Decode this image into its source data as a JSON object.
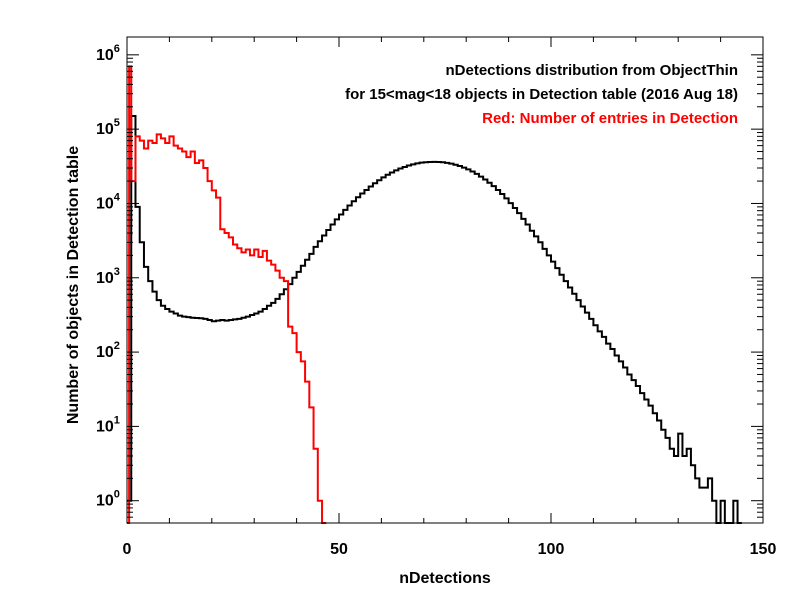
{
  "chart_data": {
    "type": "line",
    "step": true,
    "xlabel": "nDetections",
    "ylabel": "Number of objects in Detection table",
    "xlim": [
      0,
      150
    ],
    "ylim_log10": [
      -0.3,
      6.24
    ],
    "yscale": "log",
    "x_ticks": [
      {
        "value": 0,
        "label": "0"
      },
      {
        "value": 50,
        "label": "50"
      },
      {
        "value": 100,
        "label": "100"
      },
      {
        "value": 150,
        "label": "150"
      }
    ],
    "y_ticks": [
      {
        "exp": 0,
        "base": "10",
        "sup": "0"
      },
      {
        "exp": 1,
        "base": "10",
        "sup": "1"
      },
      {
        "exp": 2,
        "base": "10",
        "sup": "2"
      },
      {
        "exp": 3,
        "base": "10",
        "sup": "3"
      },
      {
        "exp": 4,
        "base": "10",
        "sup": "4"
      },
      {
        "exp": 5,
        "base": "10",
        "sup": "5"
      },
      {
        "exp": 6,
        "base": "10",
        "sup": "6"
      }
    ],
    "annotations": [
      {
        "text": "nDetections distribution from ObjectThin",
        "color": "#000000"
      },
      {
        "text": "for 15<mag<18 objects in Detection table (2016 Aug 18)",
        "color": "#000000"
      },
      {
        "text": "Red: Number of entries in Detection",
        "color": "#ff0000"
      }
    ],
    "series": [
      {
        "color": "#000000",
        "points": [
          [
            0,
            1
          ],
          [
            1,
            150000
          ],
          [
            2,
            9000
          ],
          [
            3,
            3000
          ],
          [
            4,
            1400
          ],
          [
            5,
            900
          ],
          [
            6,
            650
          ],
          [
            7,
            500
          ],
          [
            8,
            420
          ],
          [
            9,
            380
          ],
          [
            10,
            350
          ],
          [
            11,
            330
          ],
          [
            12,
            310
          ],
          [
            13,
            300
          ],
          [
            14,
            295
          ],
          [
            15,
            290
          ],
          [
            16,
            288
          ],
          [
            17,
            285
          ],
          [
            18,
            280
          ],
          [
            19,
            270
          ],
          [
            20,
            260
          ],
          [
            21,
            265
          ],
          [
            22,
            270
          ],
          [
            23,
            265
          ],
          [
            24,
            270
          ],
          [
            25,
            275
          ],
          [
            26,
            280
          ],
          [
            27,
            290
          ],
          [
            28,
            300
          ],
          [
            29,
            315
          ],
          [
            30,
            330
          ],
          [
            31,
            350
          ],
          [
            32,
            380
          ],
          [
            33,
            420
          ],
          [
            34,
            460
          ],
          [
            35,
            520
          ],
          [
            36,
            600
          ],
          [
            37,
            700
          ],
          [
            38,
            820
          ],
          [
            39,
            1000
          ],
          [
            40,
            1200
          ],
          [
            41,
            1450
          ],
          [
            42,
            1750
          ],
          [
            43,
            2100
          ],
          [
            44,
            2600
          ],
          [
            45,
            3100
          ],
          [
            46,
            3700
          ],
          [
            47,
            4400
          ],
          [
            48,
            5200
          ],
          [
            49,
            6100
          ],
          [
            50,
            7100
          ],
          [
            51,
            8200
          ],
          [
            52,
            9400
          ],
          [
            53,
            10700
          ],
          [
            54,
            12100
          ],
          [
            55,
            13600
          ],
          [
            56,
            15200
          ],
          [
            57,
            16900
          ],
          [
            58,
            18700
          ],
          [
            59,
            20500
          ],
          [
            60,
            22400
          ],
          [
            61,
            24300
          ],
          [
            62,
            26100
          ],
          [
            63,
            27900
          ],
          [
            64,
            29500
          ],
          [
            65,
            31000
          ],
          [
            66,
            32400
          ],
          [
            67,
            33600
          ],
          [
            68,
            34600
          ],
          [
            69,
            35400
          ],
          [
            70,
            35900
          ],
          [
            71,
            36200
          ],
          [
            72,
            36300
          ],
          [
            73,
            36200
          ],
          [
            74,
            35800
          ],
          [
            75,
            35200
          ],
          [
            76,
            34300
          ],
          [
            77,
            33200
          ],
          [
            78,
            31900
          ],
          [
            79,
            30400
          ],
          [
            80,
            28700
          ],
          [
            81,
            26900
          ],
          [
            82,
            25000
          ],
          [
            83,
            23000
          ],
          [
            84,
            21000
          ],
          [
            85,
            19000
          ],
          [
            86,
            17100
          ],
          [
            87,
            15200
          ],
          [
            88,
            13400
          ],
          [
            89,
            11700
          ],
          [
            90,
            10100
          ],
          [
            91,
            8700
          ],
          [
            92,
            7400
          ],
          [
            93,
            6200
          ],
          [
            94,
            5200
          ],
          [
            95,
            4300
          ],
          [
            96,
            3600
          ],
          [
            97,
            3000
          ],
          [
            98,
            2450
          ],
          [
            99,
            2000
          ],
          [
            100,
            1650
          ],
          [
            101,
            1350
          ],
          [
            102,
            1100
          ],
          [
            103,
            900
          ],
          [
            104,
            740
          ],
          [
            105,
            610
          ],
          [
            106,
            500
          ],
          [
            107,
            410
          ],
          [
            108,
            340
          ],
          [
            109,
            280
          ],
          [
            110,
            230
          ],
          [
            111,
            190
          ],
          [
            112,
            160
          ],
          [
            113,
            130
          ],
          [
            114,
            110
          ],
          [
            115,
            90
          ],
          [
            116,
            75
          ],
          [
            117,
            62
          ],
          [
            118,
            50
          ],
          [
            119,
            42
          ],
          [
            120,
            35
          ],
          [
            121,
            28
          ],
          [
            122,
            23
          ],
          [
            123,
            19
          ],
          [
            124,
            15
          ],
          [
            125,
            12
          ],
          [
            126,
            9
          ],
          [
            127,
            7
          ],
          [
            128,
            5
          ],
          [
            129,
            4
          ],
          [
            130,
            8
          ],
          [
            131,
            4
          ],
          [
            132,
            5
          ],
          [
            133,
            3
          ],
          [
            134,
            2
          ],
          [
            135,
            1.5
          ],
          [
            136,
            1.5
          ],
          [
            137,
            2
          ],
          [
            138,
            1
          ],
          [
            139,
            0.1
          ],
          [
            140,
            1
          ],
          [
            141,
            0.1
          ],
          [
            142,
            0.1
          ],
          [
            143,
            1
          ],
          [
            144,
            0.1
          ]
        ]
      },
      {
        "color": "#ff0000",
        "points": [
          [
            0,
            0.1
          ],
          [
            0.5,
            700000
          ],
          [
            1,
            20000
          ],
          [
            2,
            80000
          ],
          [
            3,
            70000
          ],
          [
            4,
            55000
          ],
          [
            5,
            70000
          ],
          [
            6,
            65000
          ],
          [
            7,
            85000
          ],
          [
            8,
            75000
          ],
          [
            9,
            65000
          ],
          [
            10,
            80000
          ],
          [
            11,
            60000
          ],
          [
            12,
            55000
          ],
          [
            13,
            50000
          ],
          [
            14,
            42000
          ],
          [
            15,
            50000
          ],
          [
            16,
            35000
          ],
          [
            17,
            38000
          ],
          [
            18,
            30000
          ],
          [
            19,
            20000
          ],
          [
            20,
            15000
          ],
          [
            21,
            12000
          ],
          [
            22,
            4500
          ],
          [
            23,
            4000
          ],
          [
            24,
            3500
          ],
          [
            25,
            2800
          ],
          [
            26,
            2500
          ],
          [
            27,
            2200
          ],
          [
            28,
            2400
          ],
          [
            29,
            2000
          ],
          [
            30,
            2400
          ],
          [
            31,
            1900
          ],
          [
            32,
            2300
          ],
          [
            33,
            1700
          ],
          [
            34,
            1500
          ],
          [
            35,
            1250
          ],
          [
            36,
            1000
          ],
          [
            37,
            900
          ],
          [
            38,
            220
          ],
          [
            39,
            180
          ],
          [
            40,
            100
          ],
          [
            41,
            75
          ],
          [
            42,
            40
          ],
          [
            43,
            18
          ],
          [
            44,
            5
          ],
          [
            45,
            1
          ],
          [
            46,
            0.1
          ]
        ]
      }
    ]
  }
}
